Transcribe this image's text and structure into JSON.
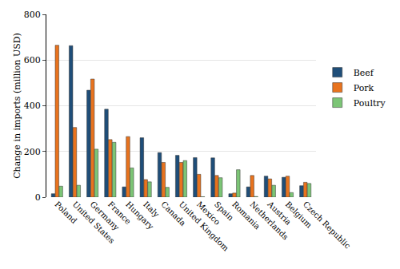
{
  "chart_data": {
    "type": "bar",
    "y_label": "Change in imports (million USD)",
    "categories": [
      "Poland",
      "United States",
      "Germany",
      "France",
      "Hungary",
      "Italy",
      "Canada",
      "United Kingdom",
      "Mexico",
      "Spain",
      "Romania",
      "Netherlands",
      "Austria",
      "Belgium",
      "Czech Republic"
    ],
    "series": [
      {
        "name": "Beef",
        "color": "#1f4e79",
        "values": [
          15,
          663,
          468,
          385,
          45,
          260,
          195,
          183,
          173,
          172,
          15,
          45,
          92,
          87,
          50
        ]
      },
      {
        "name": "Pork",
        "color": "#e8731e",
        "values": [
          665,
          305,
          517,
          252,
          265,
          77,
          152,
          152,
          100,
          95,
          18,
          95,
          80,
          92,
          65
        ]
      },
      {
        "name": "Poultry",
        "color": "#7cc576",
        "values": [
          48,
          52,
          210,
          240,
          128,
          67,
          43,
          160,
          2,
          85,
          120,
          3,
          52,
          20,
          60
        ]
      }
    ],
    "ylim": [
      0,
      800
    ],
    "yticks": [
      0,
      200,
      400,
      600,
      800
    ],
    "grid": true,
    "legend": "right"
  }
}
